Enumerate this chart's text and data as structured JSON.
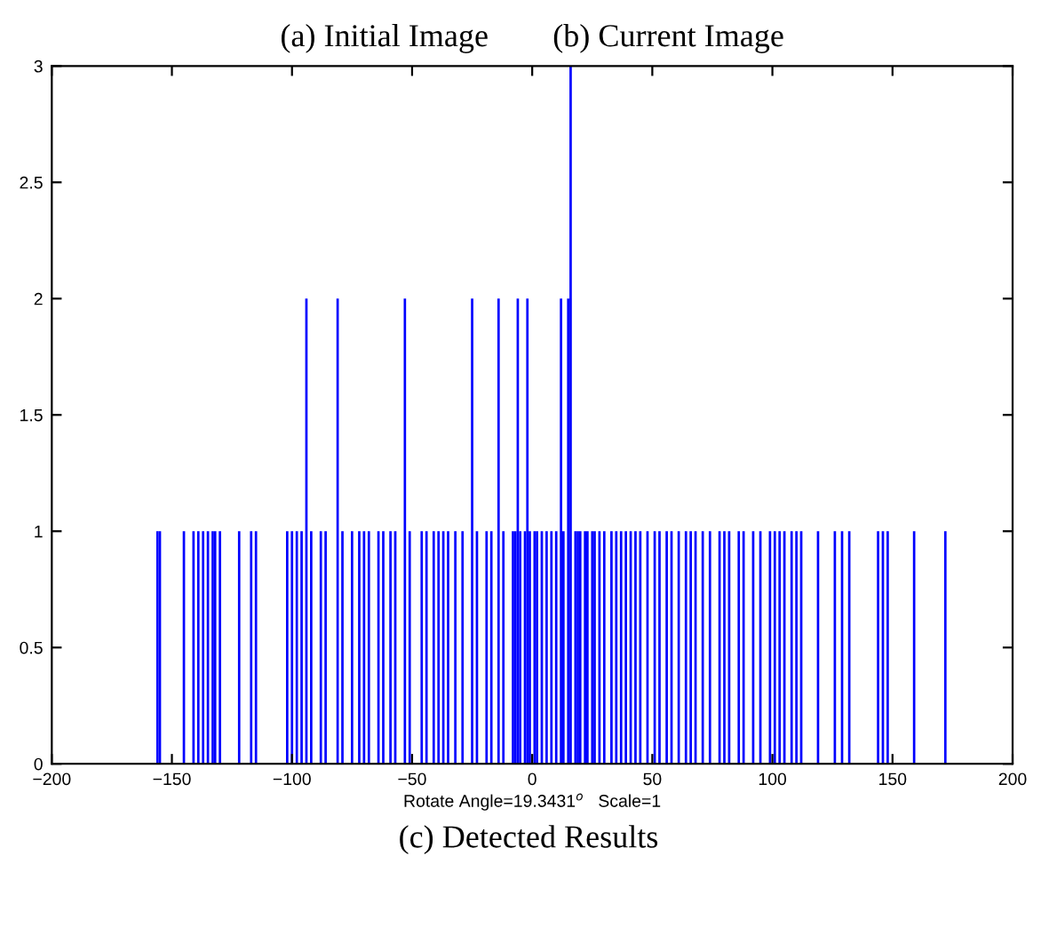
{
  "chart_data": {
    "type": "bar",
    "title": "(a) Initial Image        (b) Current Image",
    "xlabel": "Rotate Angle=19.3431$^{o}$   Scale=1",
    "annotations": [
      "(c) Detected Results"
    ],
    "x": [
      -156,
      -155,
      -145,
      -141,
      -139,
      -137,
      -135,
      -133,
      -132,
      -130,
      -122,
      -117,
      -115,
      -102,
      -100,
      -98,
      -96,
      -94,
      -92,
      -88,
      -86,
      -81,
      -79,
      -75,
      -72,
      -70,
      -68,
      -64,
      -62,
      -59,
      -57,
      -53,
      -51,
      -46,
      -44,
      -41,
      -39,
      -37,
      -35,
      -32,
      -29,
      -25,
      -23,
      -19,
      -17,
      -14,
      -12,
      -8,
      -7,
      -6,
      -5,
      -3,
      -2,
      -1,
      1,
      2,
      4,
      6,
      8,
      10,
      12,
      13,
      15,
      16,
      18,
      19,
      20,
      22,
      23,
      25,
      26,
      28,
      30,
      33,
      35,
      37,
      39,
      41,
      43,
      45,
      48,
      51,
      53,
      56,
      58,
      61,
      64,
      66,
      68,
      71,
      74,
      78,
      80,
      82,
      86,
      88,
      92,
      95,
      99,
      101,
      103,
      105,
      108,
      110,
      112,
      119,
      126,
      129,
      132,
      144,
      146,
      148,
      159,
      172
    ],
    "values": [
      1,
      1,
      1,
      1,
      1,
      1,
      1,
      1,
      1,
      1,
      1,
      1,
      1,
      1,
      1,
      1,
      1,
      2,
      1,
      1,
      1,
      2,
      1,
      1,
      1,
      1,
      1,
      1,
      1,
      1,
      1,
      2,
      1,
      1,
      1,
      1,
      1,
      1,
      1,
      1,
      1,
      2,
      1,
      1,
      1,
      2,
      1,
      1,
      1,
      2,
      1,
      1,
      2,
      1,
      1,
      1,
      1,
      1,
      1,
      1,
      2,
      1,
      2,
      3,
      1,
      1,
      1,
      1,
      1,
      1,
      1,
      1,
      1,
      1,
      1,
      1,
      1,
      1,
      1,
      1,
      1,
      1,
      1,
      1,
      1,
      1,
      1,
      1,
      1,
      1,
      1,
      1,
      1,
      1,
      1,
      1,
      1,
      1,
      1,
      1,
      1,
      1,
      1,
      1,
      1,
      1,
      1,
      1,
      1,
      1,
      1,
      1,
      1,
      1
    ],
    "color": "#0000ff",
    "xlim": [
      -200,
      200
    ],
    "xticks": [
      {
        "value": -200,
        "label": "−200"
      },
      {
        "value": -150,
        "label": "−150"
      },
      {
        "value": -100,
        "label": "−100"
      },
      {
        "value": -50,
        "label": "−50"
      },
      0,
      50,
      100,
      150,
      200
    ],
    "ylim": [
      0,
      3
    ],
    "yticks": [
      0,
      0.5,
      1,
      1.5,
      2,
      2.5,
      3
    ],
    "grid": false,
    "legend": false
  }
}
